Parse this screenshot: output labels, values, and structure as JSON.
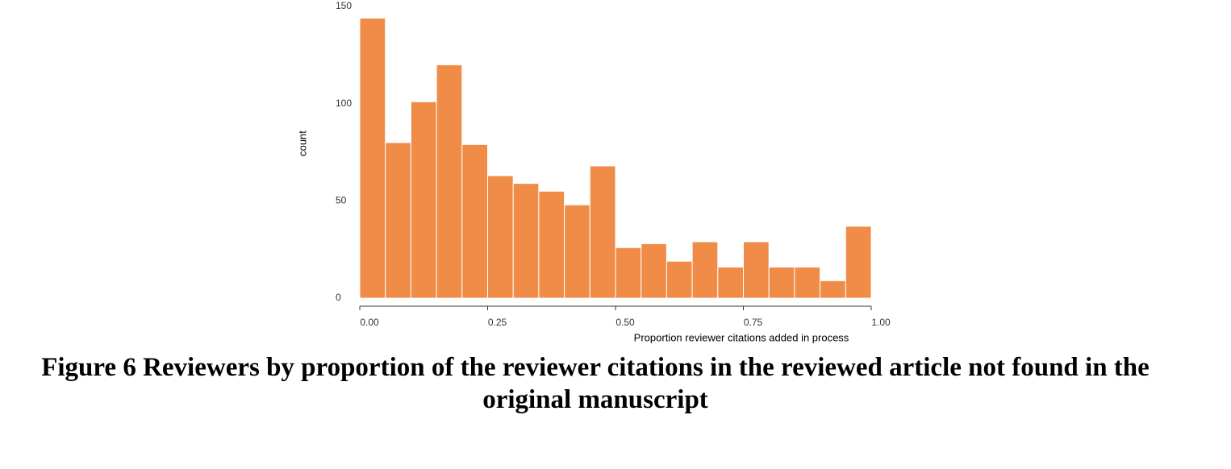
{
  "chart_data": {
    "type": "histogram",
    "caption": "Figure 6 Reviewers by proportion of the reviewer citations in the reviewed article not found in the original manuscript",
    "x_label": "Proportion reviewer citations added in process",
    "y_label": "count",
    "bins": [
      0,
      0.05,
      0.1,
      0.15,
      0.2,
      0.25,
      0.3,
      0.35,
      0.4,
      0.45,
      0.5,
      0.55,
      0.6,
      0.65,
      0.7,
      0.75,
      0.8,
      0.85,
      0.9,
      0.95,
      1
    ],
    "values": [
      144,
      80,
      101,
      120,
      79,
      63,
      59,
      55,
      48,
      68,
      26,
      28,
      19,
      29,
      16,
      29,
      16,
      16,
      9,
      37
    ],
    "color": "#f08c47",
    "xlim": [
      0,
      1
    ],
    "xticks": [
      {
        "value": 0,
        "label": "0.00"
      },
      {
        "value": 0.25,
        "label": "0.25"
      },
      {
        "value": 0.5,
        "label": "0.50"
      },
      {
        "value": 0.75,
        "label": "0.75"
      },
      {
        "value": 1,
        "label": "1.00"
      }
    ],
    "ylim": [
      0,
      150
    ],
    "yticks": [
      0,
      50,
      100,
      150
    ]
  }
}
